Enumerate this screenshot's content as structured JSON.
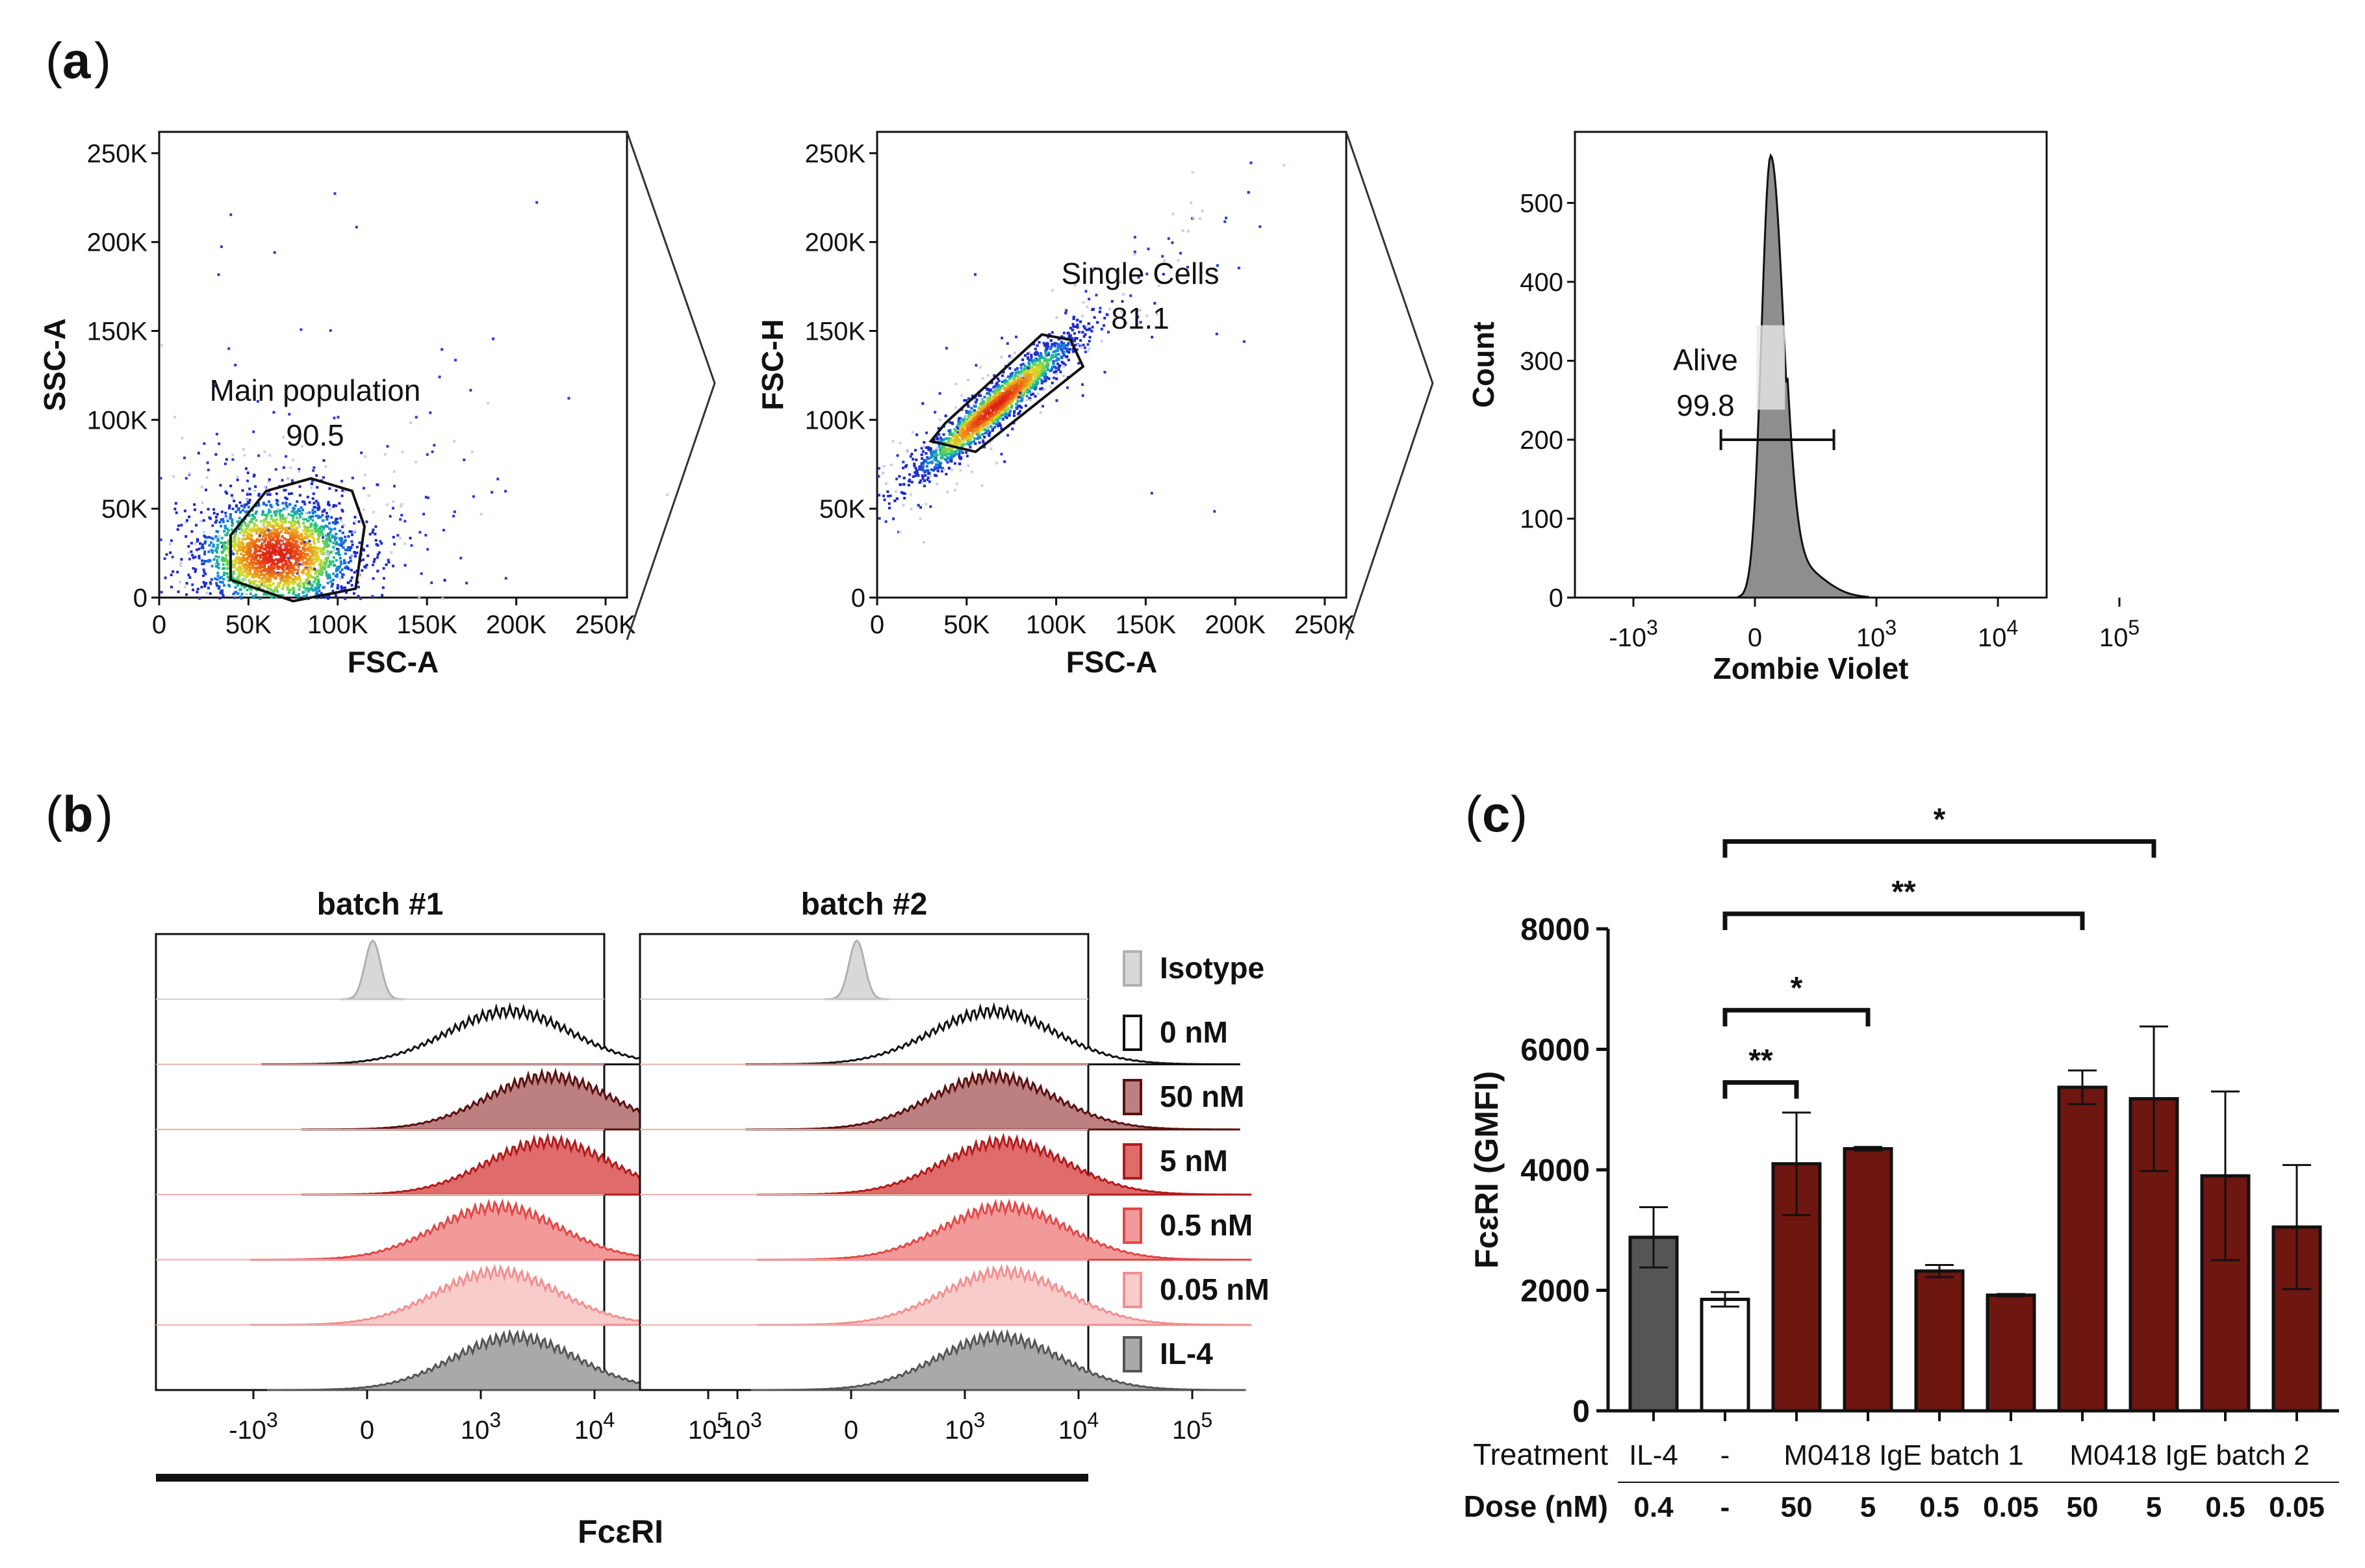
{
  "panels": {
    "a_label": "a",
    "b_label": "b",
    "c_label": "c"
  },
  "colors": {
    "dark_red": "#6e1610",
    "il4_gray": "#555555",
    "isotype_gray": "#d8d8d8",
    "white": "#ffffff",
    "outline": "#111111"
  },
  "chart_data": [
    {
      "type": "scatter",
      "id": "a1",
      "description_type": "flow cytometry density dot plot",
      "xlabel": "FSC-A",
      "ylabel": "SSC-A",
      "xticks": [
        "0",
        "50K",
        "100K",
        "150K",
        "200K",
        "250K"
      ],
      "yticks": [
        "0",
        "50K",
        "100K",
        "150K",
        "200K",
        "250K"
      ],
      "xlim": [
        0,
        262000
      ],
      "ylim": [
        0,
        262000
      ],
      "gate_name": "Main population",
      "gate_value": "90.5",
      "gate_polygon": [
        [
          40000,
          10000
        ],
        [
          75000,
          -2000
        ],
        [
          110000,
          5000
        ],
        [
          115000,
          40000
        ],
        [
          108000,
          60000
        ],
        [
          85000,
          67000
        ],
        [
          60000,
          60000
        ],
        [
          40000,
          35000
        ]
      ],
      "population_center": [
        65000,
        25000
      ]
    },
    {
      "type": "scatter",
      "id": "a2",
      "description_type": "flow cytometry density dot plot",
      "xlabel": "FSC-A",
      "ylabel": "FSC-H",
      "xticks": [
        "0",
        "50K",
        "100K",
        "150K",
        "200K",
        "250K"
      ],
      "yticks": [
        "0",
        "50K",
        "100K",
        "150K",
        "200K",
        "250K"
      ],
      "xlim": [
        0,
        262000
      ],
      "ylim": [
        0,
        262000
      ],
      "gate_name": "Single Cells",
      "gate_value": "81.1",
      "gate_polygon": [
        [
          30000,
          88000
        ],
        [
          55000,
          82000
        ],
        [
          115000,
          130000
        ],
        [
          108000,
          145000
        ],
        [
          92000,
          148000
        ],
        [
          38000,
          98000
        ]
      ],
      "population_center": [
        65000,
        108000
      ]
    },
    {
      "type": "area",
      "id": "a3",
      "description_type": "flow cytometry histogram",
      "xlabel": "Zombie Violet",
      "ylabel": "Count",
      "yticks": [
        "0",
        "100",
        "200",
        "300",
        "400",
        "500"
      ],
      "ylim": [
        0,
        590
      ],
      "xticks": [
        {
          "base": "-10",
          "exp": "3",
          "pos": -1
        },
        {
          "base": "0",
          "exp": "",
          "pos": 0
        },
        {
          "base": "10",
          "exp": "3",
          "pos": 1
        },
        {
          "base": "10",
          "exp": "4",
          "pos": 2
        },
        {
          "base": "10",
          "exp": "5",
          "pos": 3
        }
      ],
      "peak_position": 0.13,
      "peak_count": 560,
      "gate_name": "Alive",
      "gate_value": "99.8",
      "gate_range": [
        -0.28,
        0.65
      ],
      "gate_level": 200
    },
    {
      "type": "area",
      "id": "b",
      "description_type": "stacked offset histograms",
      "xlabel": "FcεRI",
      "facets": [
        "batch #1",
        "batch #2"
      ],
      "xticks": [
        {
          "base": "-10",
          "exp": "3",
          "pos": -1
        },
        {
          "base": "0",
          "exp": "",
          "pos": 0
        },
        {
          "base": "10",
          "exp": "3",
          "pos": 1
        },
        {
          "base": "10",
          "exp": "4",
          "pos": 2
        },
        {
          "base": "10",
          "exp": "5",
          "pos": 3
        }
      ],
      "legend_position": "right",
      "series": [
        {
          "name": "Isotype",
          "fill": "#d8d8d8",
          "stroke": "#b0b0b0",
          "peak_b1": 0.05,
          "peak_b2": 0.05,
          "narrow": true
        },
        {
          "name": "0 nM",
          "fill": "#ffffff",
          "stroke": "#111111",
          "peak_b1": 1.25,
          "peak_b2": 1.25
        },
        {
          "name": "50 nM",
          "fill": "#bd8080",
          "stroke": "#5a1010",
          "peak_b1": 1.6,
          "peak_b2": 1.25
        },
        {
          "name": "5 nM",
          "fill": "#e06b6b",
          "stroke": "#b01c1c",
          "peak_b1": 1.6,
          "peak_b2": 1.35
        },
        {
          "name": "0.5 nM",
          "fill": "#f29a9a",
          "stroke": "#e04848",
          "peak_b1": 1.15,
          "peak_b2": 1.35
        },
        {
          "name": "0.05 nM",
          "fill": "#f9cccc",
          "stroke": "#f09090",
          "peak_b1": 1.15,
          "peak_b2": 1.35
        },
        {
          "name": "IL-4",
          "fill": "#a9a9a9",
          "stroke": "#555555",
          "peak_b1": 1.3,
          "peak_b2": 1.3
        }
      ]
    },
    {
      "type": "bar",
      "id": "c",
      "ylabel": "FcεRI (GMFI)",
      "ylim": [
        0,
        8000
      ],
      "yticks": [
        0,
        2000,
        4000,
        6000,
        8000
      ],
      "categories": [
        "IL-4 0.4",
        "- -",
        "batch1 50",
        "batch1 5",
        "batch1 0.5",
        "batch1 0.05",
        "batch2 50",
        "batch2 5",
        "batch2 0.5",
        "batch2 0.05"
      ],
      "values": [
        2880,
        1850,
        4100,
        4350,
        2320,
        1920,
        5370,
        5180,
        3900,
        3050
      ],
      "errors": [
        500,
        120,
        850,
        30,
        100,
        20,
        280,
        1200,
        1400,
        1030
      ],
      "bar_fills": [
        "il4",
        "white",
        "red",
        "red",
        "red",
        "red",
        "red",
        "red",
        "red",
        "red"
      ],
      "treatment_label": "Treatment",
      "treatment_groups": [
        {
          "label": "IL-4",
          "from": 0,
          "to": 0
        },
        {
          "label": "-",
          "from": 1,
          "to": 1
        },
        {
          "label": "M0418 IgE batch 1",
          "from": 2,
          "to": 5
        },
        {
          "label": "M0418 IgE batch 2",
          "from": 6,
          "to": 9
        }
      ],
      "dose_label": "Dose (nM)",
      "doses": [
        "0.4",
        "-",
        "50",
        "5",
        "0.5",
        "0.05",
        "50",
        "5",
        "0.5",
        "0.05"
      ],
      "significance": [
        {
          "from": 1,
          "to": 2,
          "label": "**",
          "level": 5450
        },
        {
          "from": 1,
          "to": 3,
          "label": "*",
          "level": 6650
        },
        {
          "from": 1,
          "to": 6,
          "label": "**",
          "level": 8250
        },
        {
          "from": 1,
          "to": 7,
          "label": "*",
          "level": 9450
        }
      ]
    }
  ]
}
